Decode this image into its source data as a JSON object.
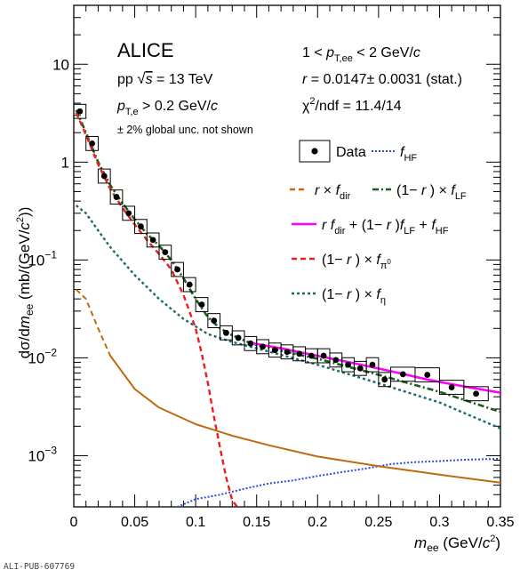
{
  "chart_data": {
    "type": "line",
    "xlabel": "m_ee (GeV/c^2)",
    "ylabel": "dσ/dm_ee (mb/(GeV/c^2))",
    "xlim": [
      0,
      0.35
    ],
    "ylim": [
      0.0003,
      40
    ],
    "yscale": "log",
    "x_ticks": [
      "0",
      "0.05",
      "0.1",
      "0.15",
      "0.2",
      "0.25",
      "0.3",
      "0.35"
    ],
    "y_ticks": [
      {
        "value": 0.001,
        "label": "10",
        "exp": "−3"
      },
      {
        "value": 0.01,
        "label": "10",
        "exp": "−2"
      },
      {
        "value": 0.1,
        "label": "10",
        "exp": "−1"
      },
      {
        "value": 1,
        "label": "1",
        "exp": ""
      },
      {
        "value": 10,
        "label": "10",
        "exp": ""
      }
    ],
    "annotations_left": {
      "experiment": "ALICE",
      "system": "pp √s = 13 TeV",
      "cut": "p_T,e > 0.2 GeV/c",
      "note": "± 2% global unc. not shown"
    },
    "annotations_right": {
      "range": "1 < p_T,ee < 2 GeV/c",
      "r_value": "r = 0.0147± 0.0031 (stat.)",
      "chi2": "χ²/ndf = 11.4/14"
    },
    "legend_placement": "top-right",
    "legend": [
      {
        "name": "Data",
        "kind": "marker"
      },
      {
        "name": "f_HF",
        "kind": "line",
        "color": "#2b4ed8",
        "style": "dotted"
      },
      {
        "name": "r × f_dir",
        "kind": "line",
        "color": "#c06a10",
        "style": "dashed"
      },
      {
        "name": "(1− r ) × f_LF",
        "kind": "line",
        "color": "#1a5c1a",
        "style": "dashdot"
      },
      {
        "name": "r f_dir + (1− r )f_LF + f_HF",
        "kind": "line",
        "color": "#ff00ff",
        "style": "solid"
      },
      {
        "name": "(1− r ) × f_π0",
        "kind": "line",
        "color": "#ee1c1c",
        "style": "dashed"
      },
      {
        "name": "(1− r ) × f_η",
        "kind": "line",
        "color": "#1a6a6a",
        "style": "dotted"
      }
    ],
    "data_points": {
      "x": [
        0.005,
        0.015,
        0.025,
        0.035,
        0.045,
        0.055,
        0.065,
        0.075,
        0.085,
        0.095,
        0.105,
        0.115,
        0.125,
        0.135,
        0.145,
        0.155,
        0.165,
        0.175,
        0.185,
        0.195,
        0.205,
        0.215,
        0.225,
        0.235,
        0.245,
        0.255,
        0.27,
        0.29,
        0.31,
        0.33
      ],
      "y": [
        3.3,
        1.55,
        0.72,
        0.44,
        0.3,
        0.22,
        0.16,
        0.12,
        0.08,
        0.056,
        0.035,
        0.024,
        0.018,
        0.016,
        0.014,
        0.013,
        0.012,
        0.0115,
        0.011,
        0.0105,
        0.0105,
        0.0095,
        0.0085,
        0.0078,
        0.0085,
        0.006,
        0.0068,
        0.0067,
        0.005,
        0.0043
      ],
      "box_width": [
        0.01,
        0.01,
        0.01,
        0.01,
        0.01,
        0.01,
        0.01,
        0.01,
        0.01,
        0.01,
        0.01,
        0.01,
        0.01,
        0.01,
        0.01,
        0.01,
        0.01,
        0.01,
        0.01,
        0.01,
        0.01,
        0.01,
        0.01,
        0.01,
        0.01,
        0.01,
        0.02,
        0.02,
        0.02,
        0.02
      ],
      "box_rel_height": 0.18
    },
    "series": [
      {
        "key": "hf",
        "x": [
          0.085,
          0.1,
          0.12,
          0.14,
          0.16,
          0.18,
          0.2,
          0.22,
          0.24,
          0.26,
          0.28,
          0.3,
          0.32,
          0.35
        ],
        "y": [
          0.0003,
          0.00036,
          0.0004,
          0.00046,
          0.00052,
          0.00056,
          0.00062,
          0.00068,
          0.00074,
          0.00082,
          0.00086,
          0.00088,
          0.00091,
          0.00093
        ]
      },
      {
        "key": "pi0",
        "x": [
          0.002,
          0.01,
          0.02,
          0.03,
          0.04,
          0.05,
          0.06,
          0.07,
          0.08,
          0.09,
          0.1,
          0.105,
          0.11,
          0.115,
          0.12,
          0.125,
          0.13,
          0.134
        ],
        "y": [
          3.2,
          1.9,
          0.95,
          0.53,
          0.34,
          0.23,
          0.16,
          0.115,
          0.08,
          0.044,
          0.02,
          0.011,
          0.0055,
          0.0025,
          0.0012,
          0.0006,
          0.00035,
          0.0003
        ]
      },
      {
        "key": "eta",
        "x": [
          0.002,
          0.01,
          0.02,
          0.03,
          0.05,
          0.07,
          0.09,
          0.11,
          0.13,
          0.15,
          0.2,
          0.25,
          0.3,
          0.35
        ],
        "y": [
          0.36,
          0.3,
          0.2,
          0.135,
          0.07,
          0.04,
          0.025,
          0.0175,
          0.0145,
          0.0125,
          0.0085,
          0.0055,
          0.0035,
          0.0019
        ]
      },
      {
        "key": "lf",
        "x": [
          0.002,
          0.01,
          0.02,
          0.03,
          0.04,
          0.05,
          0.06,
          0.07,
          0.08,
          0.09,
          0.1,
          0.11,
          0.12,
          0.13,
          0.14,
          0.15,
          0.17,
          0.2,
          0.25,
          0.3,
          0.35
        ],
        "y": [
          3.4,
          2.0,
          1.0,
          0.58,
          0.38,
          0.26,
          0.185,
          0.14,
          0.1,
          0.065,
          0.04,
          0.026,
          0.02,
          0.017,
          0.015,
          0.0135,
          0.0118,
          0.0098,
          0.0067,
          0.0045,
          0.0028
        ]
      },
      {
        "key": "dir",
        "x": [
          0.002,
          0.01,
          0.02,
          0.03,
          0.05,
          0.07,
          0.1,
          0.13,
          0.16,
          0.2,
          0.25,
          0.3,
          0.35
        ],
        "y": [
          0.05,
          0.04,
          0.02,
          0.0105,
          0.0048,
          0.0031,
          0.0021,
          0.0016,
          0.00128,
          0.00098,
          0.00078,
          0.00064,
          0.00053
        ]
      },
      {
        "key": "sum",
        "x": [
          0.145,
          0.17,
          0.2,
          0.23,
          0.26,
          0.29,
          0.32,
          0.35
        ],
        "y": [
          0.0142,
          0.0125,
          0.0105,
          0.0088,
          0.0073,
          0.006,
          0.0051,
          0.0044
        ]
      }
    ]
  },
  "footer": {
    "pub_id": "ALI-PUB-607769"
  }
}
